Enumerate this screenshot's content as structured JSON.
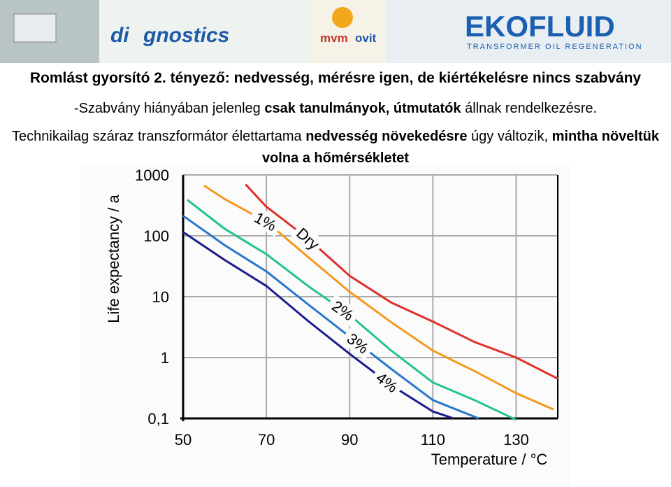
{
  "header": {
    "logo1": "di",
    "logo1b": "gnostics",
    "logo2a": "mvm",
    "logo2b": "ovit",
    "logo3": "EKOFLUID",
    "logo3sub": "TRANSFORMER OIL REGENERATION"
  },
  "headline": "Romlást gyorsító 2. tényező: nedvesség, mérésre igen, de kiértékelésre nincs szabvány",
  "line1": [
    "-Szabvány hiányában jelenleg ",
    "csak tanulmányok, útmutatók",
    " állnak rendelkezésre."
  ],
  "line2": [
    "Technikailag száraz transzformátor élettartama ",
    "nedvesség növekedésre",
    " úgy változik, ",
    "mintha növeltük volna a hőmérsékletet"
  ],
  "chart_data": {
    "type": "line",
    "x_label": "Temperature / °C",
    "y_label": "Life expectancy / a",
    "xlim": [
      50,
      140
    ],
    "ylim": [
      0.1,
      1000
    ],
    "log_y": true,
    "grid": true,
    "xticks": [
      50,
      70,
      90,
      110,
      130
    ],
    "yticks": [
      {
        "value": 0.1,
        "label": "0,1"
      },
      1,
      10,
      100,
      1000
    ],
    "series": [
      {
        "name": "Dry",
        "color": "#e0302a",
        "x": [
          65,
          70,
          80,
          90,
          100,
          110,
          120,
          130,
          140
        ],
        "values": [
          700,
          300,
          90,
          22,
          8,
          3.9,
          1.8,
          1,
          0.45
        ]
      },
      {
        "name": "1%",
        "color": "#f39a1e",
        "x": [
          55,
          60,
          70,
          80,
          90,
          100,
          110,
          120,
          130,
          139
        ],
        "values": [
          670,
          400,
          170,
          45,
          12,
          3.8,
          1.3,
          0.6,
          0.26,
          0.14
        ]
      },
      {
        "name": "2%",
        "color": "#20c490",
        "x": [
          51,
          60,
          70,
          80,
          90,
          100,
          110,
          120,
          130
        ],
        "values": [
          390,
          130,
          50,
          15,
          5,
          1.3,
          0.39,
          0.2,
          0.095
        ]
      },
      {
        "name": "3%",
        "color": "#2877c9",
        "x": [
          50,
          60,
          70,
          80,
          90,
          100,
          110,
          121
        ],
        "values": [
          213,
          70,
          26,
          7.5,
          2.2,
          0.65,
          0.2,
          0.1
        ]
      },
      {
        "name": "4%",
        "color": "#1c1c8c",
        "x": [
          50,
          60,
          70,
          80,
          90,
          100,
          110,
          115
        ],
        "values": [
          115,
          40,
          15,
          4,
          1.15,
          0.35,
          0.13,
          0.1
        ]
      }
    ]
  }
}
